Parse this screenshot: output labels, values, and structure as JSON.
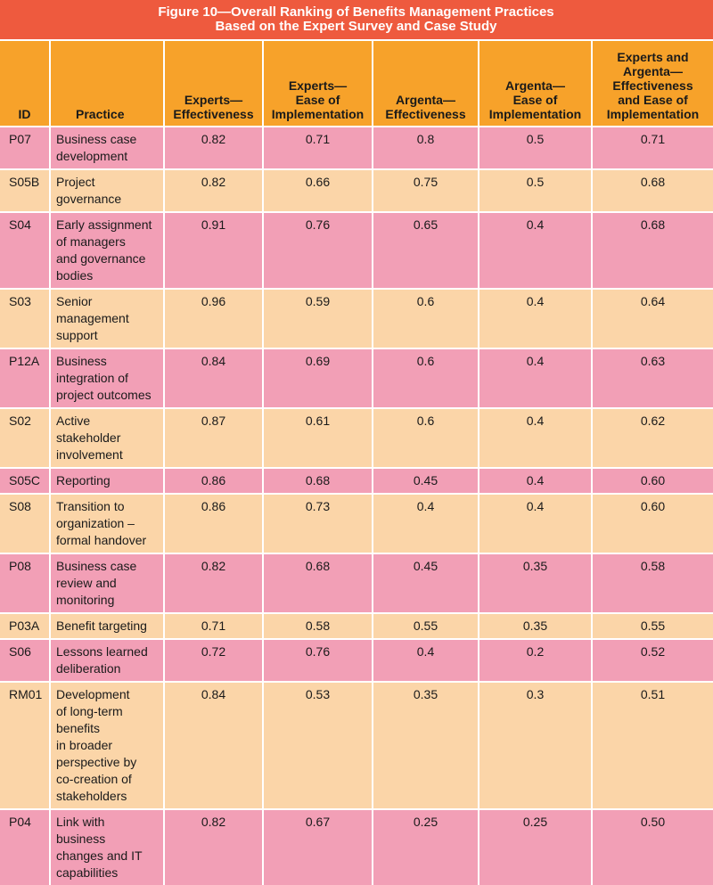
{
  "title": {
    "line1": "Figure 10—Overall Ranking of Benefits Management Practices",
    "line2": "Based on the Expert Survey and Case Study"
  },
  "colors": {
    "title_bg": "#ee5a3e",
    "header_bg": "#f7a22a",
    "row_pink": "#f29fb6",
    "row_peach": "#fbd5a8"
  },
  "headers": {
    "id": "ID",
    "practice": "Practice",
    "experts_eff": [
      "Experts—",
      "Effectiveness"
    ],
    "experts_ease": [
      "Experts—",
      "Ease of",
      "Implementation"
    ],
    "argenta_eff": [
      "Argenta—",
      "Effectiveness"
    ],
    "argenta_ease": [
      "Argenta—",
      "Ease of",
      "Implementation"
    ],
    "combined": [
      "Experts and",
      "Argenta—",
      "Effectiveness",
      "and Ease of",
      "Implementation"
    ]
  },
  "rows": [
    {
      "id": "P07",
      "practice": [
        "Business case",
        "development"
      ],
      "experts_eff": "0.82",
      "experts_ease": "0.71",
      "argenta_eff": "0.8",
      "argenta_ease": "0.5",
      "combined": "0.71"
    },
    {
      "id": "S05B",
      "practice": [
        "Project",
        "governance"
      ],
      "experts_eff": "0.82",
      "experts_ease": "0.66",
      "argenta_eff": "0.75",
      "argenta_ease": "0.5",
      "combined": "0.68"
    },
    {
      "id": "S04",
      "practice": [
        "Early assignment",
        "of managers",
        "and governance",
        "bodies"
      ],
      "experts_eff": "0.91",
      "experts_ease": "0.76",
      "argenta_eff": "0.65",
      "argenta_ease": "0.4",
      "combined": "0.68"
    },
    {
      "id": "S03",
      "practice": [
        "Senior",
        "management",
        "support"
      ],
      "experts_eff": "0.96",
      "experts_ease": "0.59",
      "argenta_eff": "0.6",
      "argenta_ease": "0.4",
      "combined": "0.64"
    },
    {
      "id": "P12A",
      "practice": [
        "Business",
        "integration of",
        "project outcomes"
      ],
      "experts_eff": "0.84",
      "experts_ease": "0.69",
      "argenta_eff": "0.6",
      "argenta_ease": "0.4",
      "combined": "0.63"
    },
    {
      "id": "S02",
      "practice": [
        "Active",
        "stakeholder",
        "involvement"
      ],
      "experts_eff": "0.87",
      "experts_ease": "0.61",
      "argenta_eff": "0.6",
      "argenta_ease": "0.4",
      "combined": "0.62"
    },
    {
      "id": "S05C",
      "practice": [
        "Reporting"
      ],
      "experts_eff": "0.86",
      "experts_ease": "0.68",
      "argenta_eff": "0.45",
      "argenta_ease": "0.4",
      "combined": "0.60"
    },
    {
      "id": "S08",
      "practice": [
        "Transition to",
        "organization –",
        "formal handover"
      ],
      "experts_eff": "0.86",
      "experts_ease": "0.73",
      "argenta_eff": "0.4",
      "argenta_ease": "0.4",
      "combined": "0.60"
    },
    {
      "id": "P08",
      "practice": [
        "Business case",
        "review and",
        "monitoring"
      ],
      "experts_eff": "0.82",
      "experts_ease": "0.68",
      "argenta_eff": "0.45",
      "argenta_ease": "0.35",
      "combined": "0.58"
    },
    {
      "id": "P03A",
      "practice": [
        "Benefit targeting"
      ],
      "experts_eff": "0.71",
      "experts_ease": "0.58",
      "argenta_eff": "0.55",
      "argenta_ease": "0.35",
      "combined": "0.55"
    },
    {
      "id": "S06",
      "practice": [
        "Lessons learned",
        "deliberation"
      ],
      "experts_eff": "0.72",
      "experts_ease": "0.76",
      "argenta_eff": "0.4",
      "argenta_ease": "0.2",
      "combined": "0.52"
    },
    {
      "id": "RM01",
      "practice": [
        "Development",
        "of long-term",
        "benefits",
        "in broader",
        "perspective by",
        "co-creation of",
        "stakeholders"
      ],
      "experts_eff": "0.84",
      "experts_ease": "0.53",
      "argenta_eff": "0.35",
      "argenta_ease": "0.3",
      "combined": "0.51"
    },
    {
      "id": "P04",
      "practice": [
        "Link with",
        "business",
        "changes and IT",
        "capabilities"
      ],
      "experts_eff": "0.82",
      "experts_ease": "0.67",
      "argenta_eff": "0.25",
      "argenta_ease": "0.25",
      "combined": "0.50"
    }
  ]
}
